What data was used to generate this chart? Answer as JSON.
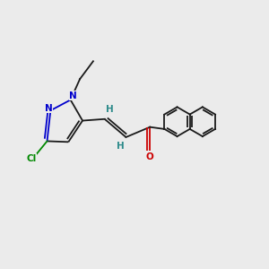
{
  "bg": "#ebebeb",
  "bc": "#1a1a1a",
  "nc": "#0000cc",
  "oc": "#cc0000",
  "clc": "#008800",
  "hc": "#2e8b8b",
  "lw": 1.3,
  "fs": 7.5,
  "figsize": [
    3.0,
    3.0
  ],
  "dpi": 100,
  "xlim": [
    0,
    10
  ],
  "ylim": [
    0,
    10
  ]
}
